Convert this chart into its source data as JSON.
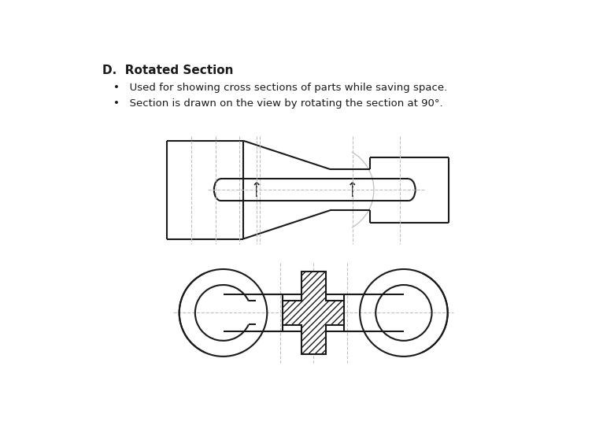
{
  "title": "D.  Rotated Section",
  "bullet1": "Used for showing cross sections of parts while saving space.",
  "bullet2": "Section is drawn on the view by rotating the section at 90°.",
  "bg_color": "#ffffff",
  "line_color": "#1a1a1a",
  "gray_line": "#c0c0c0"
}
